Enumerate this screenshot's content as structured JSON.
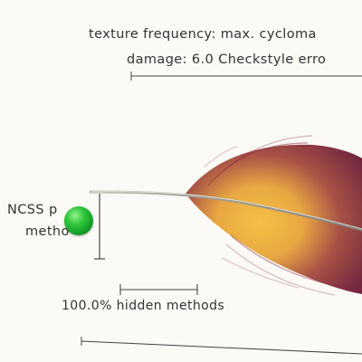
{
  "labels": {
    "caption_line_1": "texture frequency: max. cycloma",
    "caption_line_2": "damage: 6.0 Checkstyle erro",
    "ncss_line_1": "NCSS p",
    "ncss_line_2": "metho",
    "hidden_methods": "100.0% hidden methods"
  },
  "colors": {
    "feather_base": "#7a1f38",
    "feather_highlight": "#f3b93a",
    "marker": "#22b83a",
    "rule": "#444444"
  }
}
